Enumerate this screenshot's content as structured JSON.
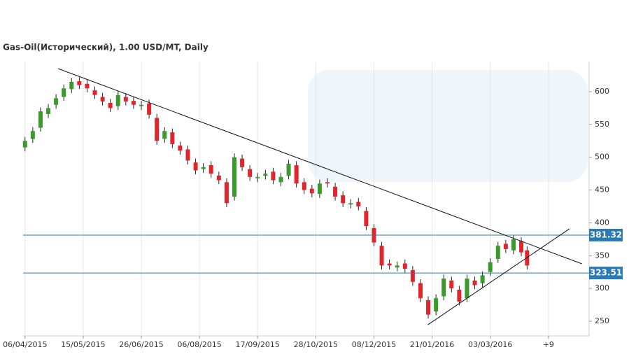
{
  "chart_data": {
    "type": "candlestick",
    "title": "Gas-Oil(Исторический), 1.00 USD/MT, Daily",
    "xlim": [
      -1,
      291
    ],
    "ylim": [
      227.6,
      645.9
    ],
    "xticks": [
      {
        "value": 0,
        "label": "06/04/2015"
      },
      {
        "value": 30,
        "label": "15/05/2015"
      },
      {
        "value": 60,
        "label": "26/06/2015"
      },
      {
        "value": 90,
        "label": "06/08/2015"
      },
      {
        "value": 120,
        "label": "17/09/2015"
      },
      {
        "value": 150,
        "label": "28/10/2015"
      },
      {
        "value": 180,
        "label": "08/12/2015"
      },
      {
        "value": 210,
        "label": "21/01/2016"
      },
      {
        "value": 240,
        "label": "03/03/2016"
      },
      {
        "value": 270,
        "label": "+9"
      }
    ],
    "yticks": [
      250,
      300,
      350,
      400,
      450,
      500,
      550,
      600
    ],
    "grid": true,
    "up_color": "#3a9a2a",
    "down_color": "#e0262c",
    "x": [
      0,
      4,
      8,
      12,
      16,
      20,
      24,
      28,
      32,
      36,
      40,
      44,
      48,
      52,
      56,
      60,
      64,
      68,
      72,
      76,
      80,
      84,
      88,
      92,
      96,
      100,
      104,
      108,
      112,
      116,
      120,
      124,
      128,
      132,
      136,
      140,
      144,
      148,
      152,
      156,
      160,
      164,
      168,
      172,
      176,
      180,
      184,
      188,
      192,
      196,
      200,
      204,
      208,
      212,
      216,
      220,
      224,
      228,
      232,
      236,
      240,
      244,
      248,
      252,
      256,
      259
    ],
    "open": [
      515,
      528,
      545,
      566,
      580,
      592,
      604,
      616,
      612,
      602,
      592,
      583,
      578,
      592,
      586,
      578,
      582,
      560,
      528,
      538,
      518,
      512,
      492,
      482,
      488,
      472,
      462,
      440,
      498,
      482,
      468,
      472,
      478,
      462,
      472,
      488,
      462,
      452,
      444,
      462,
      455,
      442,
      428,
      432,
      418,
      392,
      365,
      338,
      332,
      338,
      328,
      308,
      282,
      265,
      288,
      312,
      298,
      285,
      312,
      308,
      325,
      345,
      368,
      358,
      372,
      358
    ],
    "high": [
      531,
      546,
      576,
      581,
      596,
      611,
      621,
      622,
      618,
      608,
      598,
      589,
      601,
      598,
      592,
      586,
      588,
      566,
      546,
      544,
      524,
      518,
      498,
      491,
      494,
      478,
      468,
      506,
      504,
      488,
      476,
      481,
      484,
      476,
      496,
      494,
      468,
      458,
      466,
      468,
      461,
      448,
      436,
      438,
      424,
      398,
      371,
      344,
      341,
      344,
      334,
      314,
      288,
      291,
      321,
      318,
      304,
      321,
      318,
      326,
      346,
      371,
      374,
      381,
      378,
      364
    ],
    "low": [
      509,
      522,
      539,
      560,
      574,
      586,
      598,
      604,
      599,
      589,
      579,
      569,
      572,
      579,
      574,
      572,
      559,
      519,
      522,
      514,
      504,
      489,
      474,
      476,
      469,
      459,
      424,
      434,
      479,
      464,
      462,
      466,
      459,
      456,
      466,
      454,
      444,
      439,
      438,
      454,
      434,
      424,
      422,
      419,
      389,
      364,
      329,
      329,
      326,
      324,
      304,
      279,
      254,
      259,
      282,
      294,
      274,
      279,
      299,
      302,
      319,
      339,
      354,
      352,
      349,
      329
    ],
    "close": [
      525,
      540,
      570,
      575,
      590,
      605,
      615,
      610,
      605,
      595,
      585,
      575,
      595,
      585,
      580,
      580,
      565,
      525,
      540,
      520,
      510,
      495,
      480,
      485,
      475,
      465,
      430,
      500,
      485,
      470,
      470,
      475,
      465,
      470,
      490,
      460,
      450,
      445,
      460,
      460,
      440,
      430,
      430,
      425,
      395,
      370,
      335,
      335,
      335,
      330,
      310,
      285,
      260,
      285,
      315,
      300,
      280,
      315,
      305,
      320,
      340,
      365,
      360,
      375,
      355,
      335
    ],
    "levels": [
      {
        "value": 381.32,
        "color": "#2a7ab8"
      },
      {
        "value": 323.51,
        "color": "#2a7ab8"
      }
    ],
    "trendlines": [
      {
        "x": [
          17,
          287.3
        ],
        "y": [
          635.2,
          337.5
        ]
      },
      {
        "x": [
          207.8,
          280.8
        ],
        "y": [
          244.6,
          390.8
        ]
      }
    ]
  }
}
